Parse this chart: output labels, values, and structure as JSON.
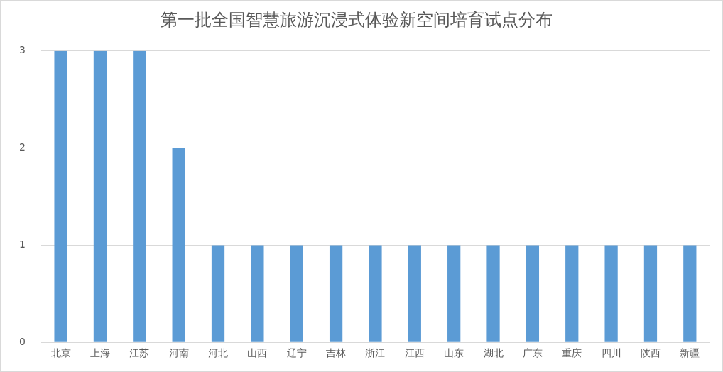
{
  "chart_data": {
    "type": "bar",
    "title": "第一批全国智慧旅游沉浸式体验新空间培育试点分布",
    "categories": [
      "北京",
      "上海",
      "江苏",
      "河南",
      "河北",
      "山西",
      "辽宁",
      "吉林",
      "浙江",
      "江西",
      "山东",
      "湖北",
      "广东",
      "重庆",
      "四川",
      "陕西",
      "新疆"
    ],
    "values": [
      3,
      3,
      3,
      2,
      1,
      1,
      1,
      1,
      1,
      1,
      1,
      1,
      1,
      1,
      1,
      1,
      1
    ],
    "color": "#5b9bd5",
    "ylim": [
      0,
      3
    ],
    "yticks": [
      0,
      1,
      2,
      3
    ],
    "grid": "y",
    "legend": false
  }
}
